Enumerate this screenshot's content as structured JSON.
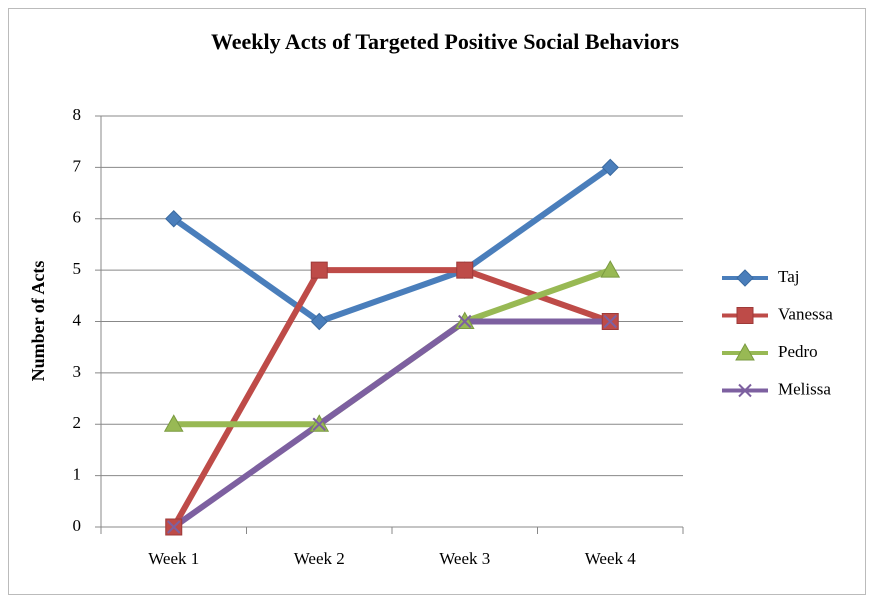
{
  "chart_data": {
    "type": "line",
    "title": "Weekly Acts of Targeted Positive Social Behaviors",
    "y_label": "Number of Acts",
    "categories": [
      "Week 1",
      "Week 2",
      "Week 3",
      "Week 4"
    ],
    "series": [
      {
        "name": "Taj",
        "color": "#4a7ebb",
        "marker": "diamond",
        "values": [
          6,
          4,
          5,
          7
        ]
      },
      {
        "name": "Vanessa",
        "color": "#be4b48",
        "marker": "square",
        "values": [
          0,
          5,
          5,
          4
        ]
      },
      {
        "name": "Pedro",
        "color": "#98b954",
        "marker": "triangle",
        "values": [
          2,
          2,
          4,
          5
        ]
      },
      {
        "name": "Melissa",
        "color": "#7d60a0",
        "marker": "x",
        "values": [
          0,
          2,
          4,
          4
        ]
      }
    ],
    "ylim": [
      0,
      8
    ],
    "yticks": [
      0,
      1,
      2,
      3,
      4,
      5,
      6,
      7,
      8
    ],
    "grid": true,
    "legend": "right"
  }
}
